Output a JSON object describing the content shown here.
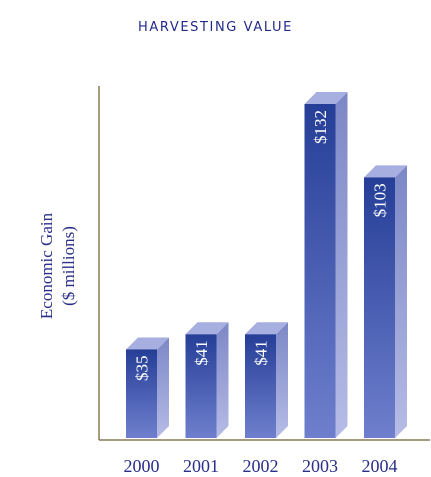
{
  "chart_data": {
    "type": "bar",
    "title": "HARVESTING VALUE",
    "ylabel": [
      "Economic Gain",
      "($ millions)"
    ],
    "categories": [
      "2000",
      "2001",
      "2002",
      "2003",
      "2004"
    ],
    "values": [
      35,
      41,
      41,
      132,
      103
    ],
    "data_labels": [
      "$35",
      "$41",
      "$41",
      "$132",
      "$103"
    ],
    "ylim": [
      0,
      160
    ],
    "grid": false,
    "colors": {
      "front_dark": "#253e97",
      "front_light": "#6f7fcd",
      "side_dark": "#7c87c6",
      "side_light": "#b6bce6",
      "top": "#a7aee0",
      "axis": "#8a7a55",
      "text": "#2a2f8a"
    }
  }
}
